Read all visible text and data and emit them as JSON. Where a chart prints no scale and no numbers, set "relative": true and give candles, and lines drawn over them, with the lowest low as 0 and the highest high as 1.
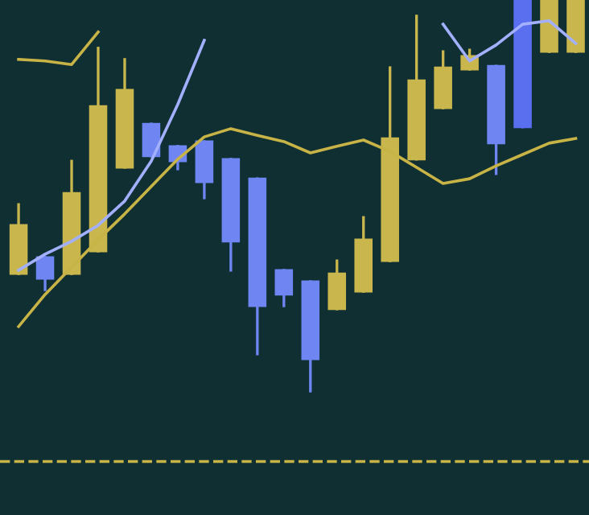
{
  "chart_data": {
    "type": "candlestick",
    "relative": true,
    "categories": [
      null,
      null,
      null,
      null,
      null,
      null,
      null,
      null,
      null,
      null,
      null,
      null,
      null,
      null,
      null,
      null,
      null,
      null,
      null,
      null,
      null,
      null
    ],
    "ohlc": [
      [
        0.3,
        0.477,
        0.3,
        0.424
      ],
      [
        0.342,
        0.342,
        0.259,
        0.288
      ],
      [
        0.3,
        0.588,
        0.3,
        0.506
      ],
      [
        0.358,
        0.877,
        0.358,
        0.728
      ],
      [
        0.572,
        0.848,
        0.572,
        0.77
      ],
      [
        0.683,
        0.683,
        0.601,
        0.601
      ],
      [
        0.626,
        0.626,
        0.568,
        0.588
      ],
      [
        0.638,
        0.638,
        0.494,
        0.535
      ],
      [
        0.593,
        0.593,
        0.309,
        0.383
      ],
      [
        0.543,
        0.543,
        0.095,
        0.218
      ],
      [
        0.309,
        0.309,
        0.218,
        0.247
      ],
      [
        0.28,
        0.28,
        0,
        0.082
      ],
      [
        0.21,
        0.333,
        0.21,
        0.3
      ],
      [
        0.255,
        0.444,
        0.255,
        0.387
      ],
      [
        0.333,
        0.827,
        0.333,
        0.646
      ],
      [
        0.593,
        0.959,
        0.593,
        0.794
      ],
      [
        0.724,
        0.868,
        0.724,
        0.827
      ],
      [
        0.823,
        0.872,
        0.823,
        0.856
      ],
      [
        0.831,
        0.831,
        0.556,
        0.634
      ],
      [
        1,
        1,
        0.675,
        0.675
      ],
      [
        0.868,
        1,
        0.868,
        1
      ],
      [
        0.868,
        1,
        0.868,
        1
      ]
    ],
    "colors": [
      "#c9b64c",
      "#6f86f2",
      "#c9b64c",
      "#c9b64c",
      "#c9b64c",
      "#6f86f2",
      "#6f86f2",
      "#6f86f2",
      "#6f86f2",
      "#6f86f2",
      "#6f86f2",
      "#6f86f2",
      "#c9b64c",
      "#c9b64c",
      "#c9b64c",
      "#c9b64c",
      "#c9b64c",
      "#c9b64c",
      "#6f86f2",
      "#5a6ef0",
      "#c9b64c",
      "#c9b64c"
    ],
    "series": [
      {
        "type": "line",
        "color": "#c8b446",
        "values": [
          0.165,
          0.247,
          0.317,
          0.387,
          0.453,
          0.523,
          0.593,
          0.65,
          0.671,
          0.654,
          0.638,
          0.609,
          0.626,
          0.642,
          0.613,
          0.572,
          0.531,
          0.543,
          0.576,
          0.605,
          0.634,
          0.646
        ]
      },
      {
        "type": "line",
        "color": "#a3b0ff",
        "values": [
          0.309,
          0.35,
          0.383,
          0.424,
          0.486,
          0.588,
          0.733,
          0.897,
          null,
          null,
          null,
          null,
          null,
          null,
          null,
          null,
          0.938,
          0.844,
          0.885,
          0.938,
          0.947,
          0.889
        ]
      },
      {
        "type": "line",
        "color": "#c8b446",
        "values": [
          0.848,
          0.844,
          0.835,
          0.918,
          null,
          null,
          null,
          null,
          null,
          null,
          null,
          null,
          null,
          null,
          null,
          null,
          null,
          null,
          null,
          null,
          null,
          null
        ]
      }
    ],
    "ref_lines": [
      {
        "axis": "y",
        "value": -0.18,
        "color": "#c8b446",
        "line_style": "dashed"
      }
    ]
  }
}
